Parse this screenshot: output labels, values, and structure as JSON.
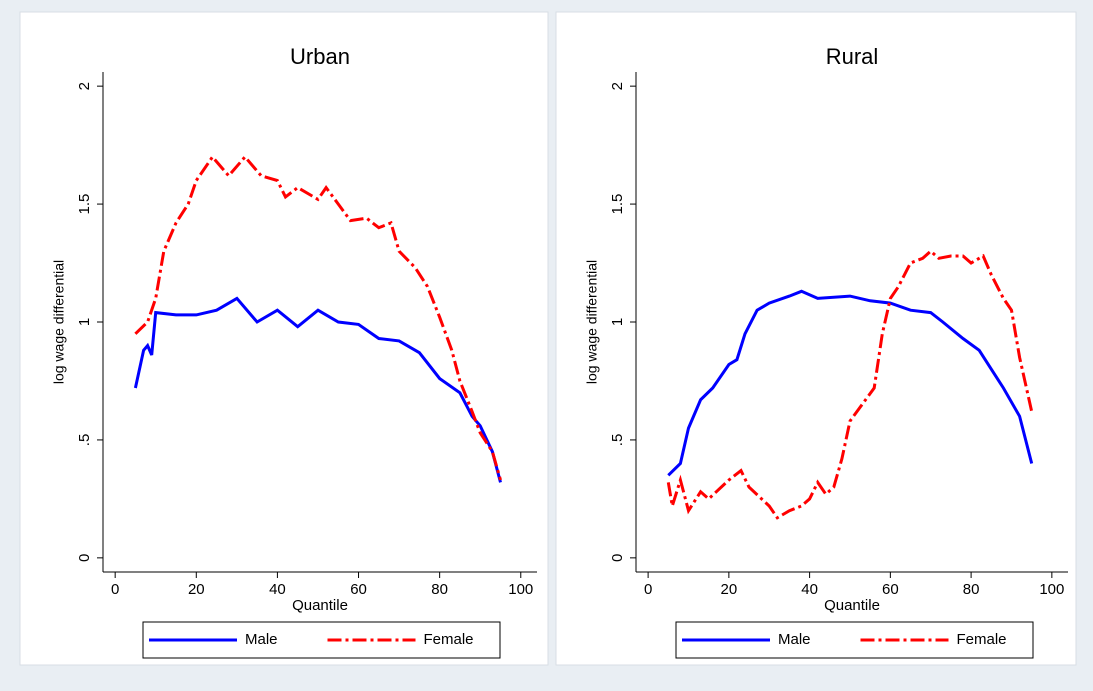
{
  "chart_data": [
    {
      "type": "line",
      "title": "Urban",
      "x_label": "Quantile",
      "y_label": "log wage differential",
      "xlim": [
        -3,
        104
      ],
      "xticks": [
        0,
        20,
        40,
        60,
        80,
        100
      ],
      "ylim": [
        -0.06,
        2.06
      ],
      "yticks": [
        0,
        {
          "value": 0.5,
          "label": ".5"
        },
        1,
        {
          "value": 1.5,
          "label": "1.5"
        },
        2
      ],
      "series": [
        {
          "name": "Male",
          "color": "#0000ff",
          "dash": "solid",
          "x": [
            5,
            7,
            8,
            9,
            10,
            15,
            20,
            25,
            30,
            35,
            40,
            45,
            50,
            55,
            60,
            65,
            70,
            75,
            80,
            85,
            88,
            90,
            93,
            95
          ],
          "values": [
            0.72,
            0.88,
            0.9,
            0.86,
            1.04,
            1.03,
            1.03,
            1.05,
            1.1,
            1.0,
            1.05,
            0.98,
            1.05,
            1.0,
            0.99,
            0.93,
            0.92,
            0.87,
            0.76,
            0.7,
            0.6,
            0.56,
            0.45,
            0.32
          ]
        },
        {
          "name": "Female",
          "color": "#ff0000",
          "dash": "dash-dot",
          "x": [
            5,
            8,
            10,
            12,
            15,
            18,
            20,
            24,
            28,
            32,
            36,
            40,
            42,
            45,
            50,
            52,
            55,
            58,
            62,
            65,
            68,
            70,
            74,
            77,
            80,
            83,
            85,
            88,
            90,
            93,
            95
          ],
          "values": [
            0.95,
            1.0,
            1.1,
            1.3,
            1.42,
            1.5,
            1.6,
            1.7,
            1.62,
            1.7,
            1.62,
            1.6,
            1.53,
            1.57,
            1.52,
            1.57,
            1.5,
            1.43,
            1.44,
            1.4,
            1.42,
            1.3,
            1.23,
            1.15,
            1.02,
            0.88,
            0.75,
            0.62,
            0.53,
            0.45,
            0.33
          ]
        }
      ]
    },
    {
      "type": "line",
      "title": "Rural",
      "x_label": "Quantile",
      "y_label": "log wage differential",
      "xlim": [
        -3,
        104
      ],
      "xticks": [
        0,
        20,
        40,
        60,
        80,
        100
      ],
      "ylim": [
        -0.06,
        2.06
      ],
      "yticks": [
        0,
        {
          "value": 0.5,
          "label": ".5"
        },
        1,
        {
          "value": 1.5,
          "label": "1.5"
        },
        2
      ],
      "series": [
        {
          "name": "Male",
          "color": "#0000ff",
          "dash": "solid",
          "x": [
            5,
            8,
            10,
            13,
            16,
            20,
            22,
            24,
            27,
            30,
            35,
            38,
            42,
            50,
            55,
            60,
            65,
            70,
            73,
            78,
            82,
            85,
            88,
            92,
            95
          ],
          "values": [
            0.35,
            0.4,
            0.55,
            0.67,
            0.72,
            0.82,
            0.84,
            0.95,
            1.05,
            1.08,
            1.11,
            1.13,
            1.1,
            1.11,
            1.09,
            1.08,
            1.05,
            1.04,
            1.0,
            0.93,
            0.88,
            0.8,
            0.72,
            0.6,
            0.4
          ]
        },
        {
          "name": "Female",
          "color": "#ff0000",
          "dash": "dash-dot",
          "x": [
            5,
            6,
            8,
            10,
            13,
            15,
            20,
            23,
            25,
            30,
            32,
            35,
            38,
            40,
            42,
            44,
            46,
            48,
            50,
            53,
            56,
            58,
            60,
            62,
            65,
            68,
            70,
            72,
            75,
            78,
            80,
            83,
            85,
            88,
            90,
            92,
            95
          ],
          "values": [
            0.32,
            0.22,
            0.33,
            0.2,
            0.28,
            0.25,
            0.33,
            0.37,
            0.3,
            0.22,
            0.17,
            0.2,
            0.22,
            0.25,
            0.32,
            0.27,
            0.3,
            0.42,
            0.58,
            0.65,
            0.72,
            0.95,
            1.1,
            1.15,
            1.25,
            1.27,
            1.3,
            1.27,
            1.28,
            1.28,
            1.25,
            1.28,
            1.2,
            1.1,
            1.05,
            0.85,
            0.62
          ]
        }
      ]
    }
  ]
}
